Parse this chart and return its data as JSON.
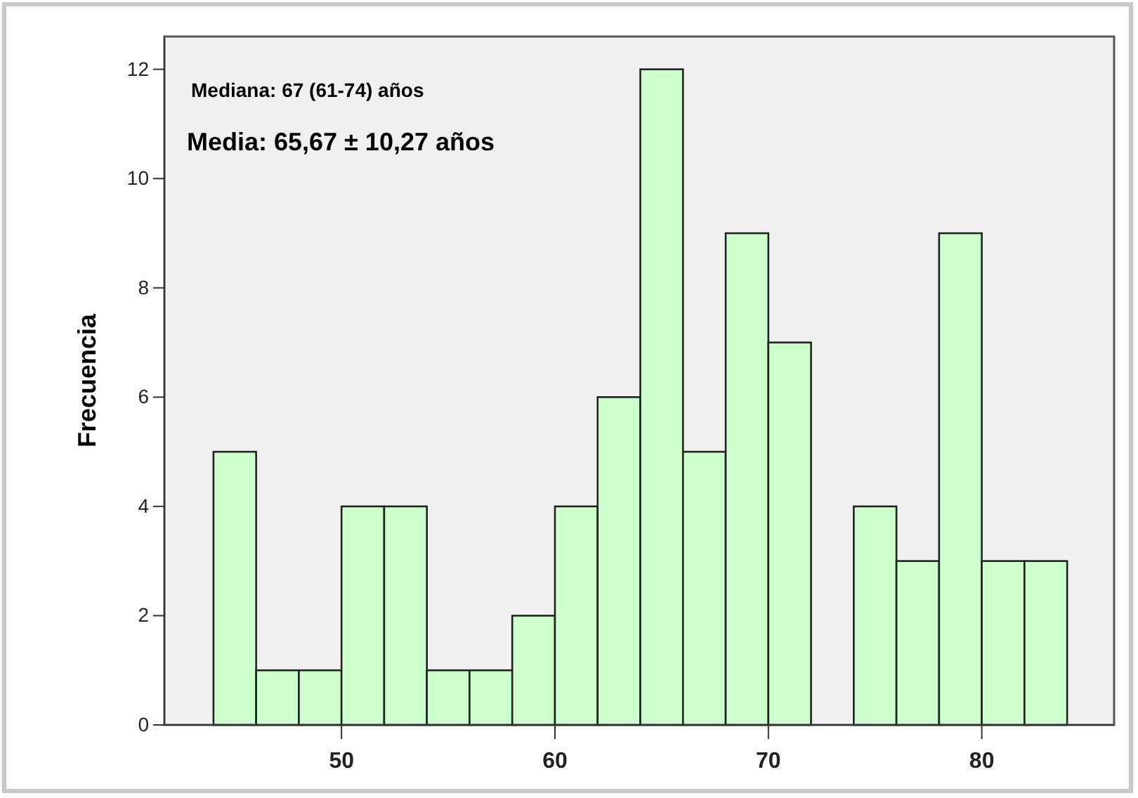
{
  "chart_data": {
    "type": "histogram",
    "ylabel": "Frecuencia",
    "bins": [
      44,
      46,
      48,
      50,
      52,
      54,
      56,
      58,
      60,
      62,
      64,
      66,
      68,
      70,
      72,
      74,
      76,
      78,
      80,
      82,
      84
    ],
    "values": [
      5,
      1,
      1,
      4,
      4,
      1,
      1,
      2,
      4,
      6,
      12,
      5,
      9,
      7,
      0,
      4,
      3,
      9,
      3,
      3
    ],
    "color": "#ccffcc",
    "xlim": [
      41.7,
      86.2
    ],
    "xticks": [
      50,
      60,
      70,
      80
    ],
    "ylim": [
      0,
      12.6
    ],
    "yticks": [
      0,
      2,
      4,
      6,
      8,
      10,
      12
    ],
    "grid": false,
    "annotations": [
      "Mediana: 67 (61-74) años",
      "Media: 65,67 ± 10,27 años"
    ]
  }
}
